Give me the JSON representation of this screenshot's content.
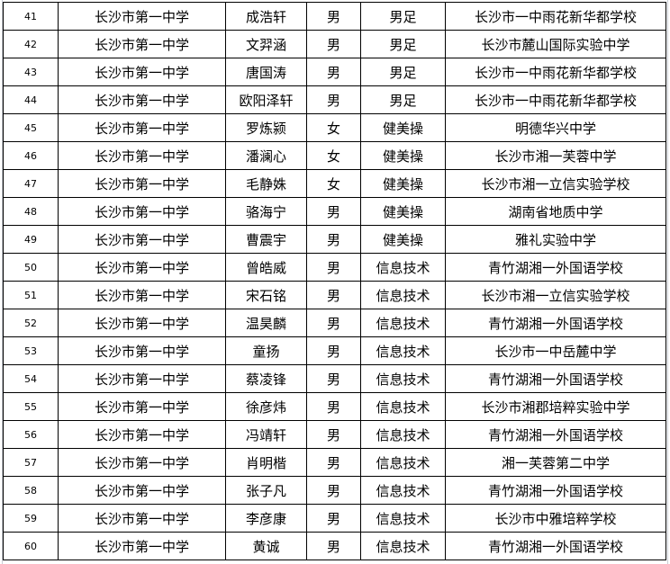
{
  "rows": [
    [
      "41",
      "长沙市第一中学",
      "成浩轩",
      "男",
      "男足",
      "长沙市一中雨花新华都学校"
    ],
    [
      "42",
      "长沙市第一中学",
      "文羿涵",
      "男",
      "男足",
      "长沙市麓山国际实验中学"
    ],
    [
      "43",
      "长沙市第一中学",
      "唐国涛",
      "男",
      "男足",
      "长沙市一中雨花新华都学校"
    ],
    [
      "44",
      "长沙市第一中学",
      "欧阳泽轩",
      "男",
      "男足",
      "长沙市一中雨花新华都学校"
    ],
    [
      "45",
      "长沙市第一中学",
      "罗炼颍",
      "女",
      "健美操",
      "明德华兴中学"
    ],
    [
      "46",
      "长沙市第一中学",
      "潘澜心",
      "女",
      "健美操",
      "长沙市湘一芙蓉中学"
    ],
    [
      "47",
      "长沙市第一中学",
      "毛静姝",
      "女",
      "健美操",
      "长沙市湘一立信实验学校"
    ],
    [
      "48",
      "长沙市第一中学",
      "骆海宁",
      "男",
      "健美操",
      "湖南省地质中学"
    ],
    [
      "49",
      "长沙市第一中学",
      "曹震宇",
      "男",
      "健美操",
      "雅礼实验中学"
    ],
    [
      "50",
      "长沙市第一中学",
      "曾皓威",
      "男",
      "信息技术",
      "青竹湖湘一外国语学校"
    ],
    [
      "51",
      "长沙市第一中学",
      "宋石铭",
      "男",
      "信息技术",
      "长沙市湘一立信实验学校"
    ],
    [
      "52",
      "长沙市第一中学",
      "温昊麟",
      "男",
      "信息技术",
      "青竹湖湘一外国语学校"
    ],
    [
      "53",
      "长沙市第一中学",
      "童扬",
      "男",
      "信息技术",
      "长沙市一中岳麓中学"
    ],
    [
      "54",
      "长沙市第一中学",
      "蔡凌锋",
      "男",
      "信息技术",
      "青竹湖湘一外国语学校"
    ],
    [
      "55",
      "长沙市第一中学",
      "徐彦炜",
      "男",
      "信息技术",
      "长沙市湘郡培粹实验中学"
    ],
    [
      "56",
      "长沙市第一中学",
      "冯靖轩",
      "男",
      "信息技术",
      "青竹湖湘一外国语学校"
    ],
    [
      "57",
      "长沙市第一中学",
      "肖明楷",
      "男",
      "信息技术",
      "湘一芙蓉第二中学"
    ],
    [
      "58",
      "长沙市第一中学",
      "张子凡",
      "男",
      "信息技术",
      "青竹湖湘一外国语学校"
    ],
    [
      "59",
      "长沙市第一中学",
      "李彦康",
      "男",
      "信息技术",
      "长沙市中雅培粹学校"
    ],
    [
      "60",
      "长沙市第一中学",
      "黄诚",
      "男",
      "信息技术",
      "青竹湖湘一外国语学校"
    ]
  ]
}
